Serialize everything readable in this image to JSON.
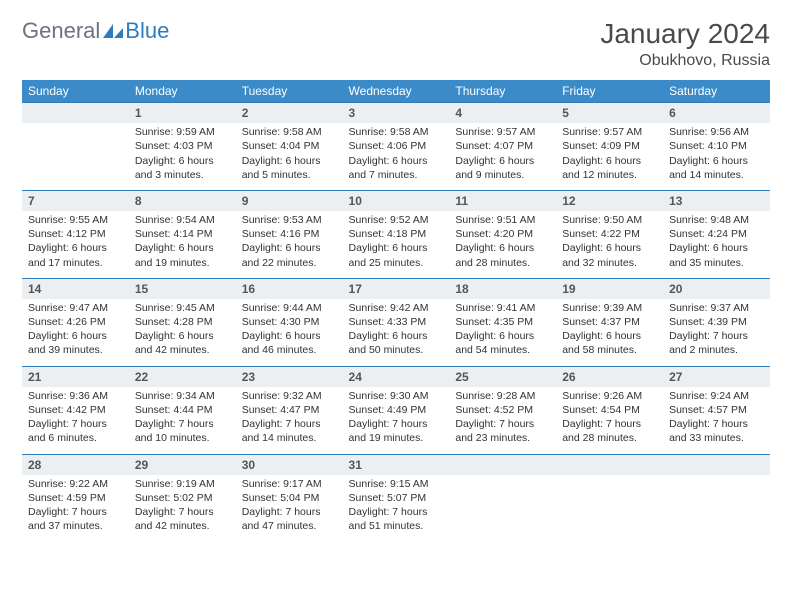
{
  "logo": {
    "text1": "General",
    "text2": "Blue"
  },
  "title": "January 2024",
  "location": "Obukhovo, Russia",
  "colors": {
    "header_bg": "#3b8bc9",
    "header_text": "#ffffff",
    "daynum_bg": "#eceff1",
    "border": "#2f7bbf",
    "text": "#333333",
    "logo_gray": "#6b7280",
    "logo_blue": "#2f7bbf"
  },
  "weekdays": [
    "Sunday",
    "Monday",
    "Tuesday",
    "Wednesday",
    "Thursday",
    "Friday",
    "Saturday"
  ],
  "weeks": [
    {
      "nums": [
        "",
        "1",
        "2",
        "3",
        "4",
        "5",
        "6"
      ],
      "cells": [
        [],
        [
          "Sunrise: 9:59 AM",
          "Sunset: 4:03 PM",
          "Daylight: 6 hours and 3 minutes."
        ],
        [
          "Sunrise: 9:58 AM",
          "Sunset: 4:04 PM",
          "Daylight: 6 hours and 5 minutes."
        ],
        [
          "Sunrise: 9:58 AM",
          "Sunset: 4:06 PM",
          "Daylight: 6 hours and 7 minutes."
        ],
        [
          "Sunrise: 9:57 AM",
          "Sunset: 4:07 PM",
          "Daylight: 6 hours and 9 minutes."
        ],
        [
          "Sunrise: 9:57 AM",
          "Sunset: 4:09 PM",
          "Daylight: 6 hours and 12 minutes."
        ],
        [
          "Sunrise: 9:56 AM",
          "Sunset: 4:10 PM",
          "Daylight: 6 hours and 14 minutes."
        ]
      ]
    },
    {
      "nums": [
        "7",
        "8",
        "9",
        "10",
        "11",
        "12",
        "13"
      ],
      "cells": [
        [
          "Sunrise: 9:55 AM",
          "Sunset: 4:12 PM",
          "Daylight: 6 hours and 17 minutes."
        ],
        [
          "Sunrise: 9:54 AM",
          "Sunset: 4:14 PM",
          "Daylight: 6 hours and 19 minutes."
        ],
        [
          "Sunrise: 9:53 AM",
          "Sunset: 4:16 PM",
          "Daylight: 6 hours and 22 minutes."
        ],
        [
          "Sunrise: 9:52 AM",
          "Sunset: 4:18 PM",
          "Daylight: 6 hours and 25 minutes."
        ],
        [
          "Sunrise: 9:51 AM",
          "Sunset: 4:20 PM",
          "Daylight: 6 hours and 28 minutes."
        ],
        [
          "Sunrise: 9:50 AM",
          "Sunset: 4:22 PM",
          "Daylight: 6 hours and 32 minutes."
        ],
        [
          "Sunrise: 9:48 AM",
          "Sunset: 4:24 PM",
          "Daylight: 6 hours and 35 minutes."
        ]
      ]
    },
    {
      "nums": [
        "14",
        "15",
        "16",
        "17",
        "18",
        "19",
        "20"
      ],
      "cells": [
        [
          "Sunrise: 9:47 AM",
          "Sunset: 4:26 PM",
          "Daylight: 6 hours and 39 minutes."
        ],
        [
          "Sunrise: 9:45 AM",
          "Sunset: 4:28 PM",
          "Daylight: 6 hours and 42 minutes."
        ],
        [
          "Sunrise: 9:44 AM",
          "Sunset: 4:30 PM",
          "Daylight: 6 hours and 46 minutes."
        ],
        [
          "Sunrise: 9:42 AM",
          "Sunset: 4:33 PM",
          "Daylight: 6 hours and 50 minutes."
        ],
        [
          "Sunrise: 9:41 AM",
          "Sunset: 4:35 PM",
          "Daylight: 6 hours and 54 minutes."
        ],
        [
          "Sunrise: 9:39 AM",
          "Sunset: 4:37 PM",
          "Daylight: 6 hours and 58 minutes."
        ],
        [
          "Sunrise: 9:37 AM",
          "Sunset: 4:39 PM",
          "Daylight: 7 hours and 2 minutes."
        ]
      ]
    },
    {
      "nums": [
        "21",
        "22",
        "23",
        "24",
        "25",
        "26",
        "27"
      ],
      "cells": [
        [
          "Sunrise: 9:36 AM",
          "Sunset: 4:42 PM",
          "Daylight: 7 hours and 6 minutes."
        ],
        [
          "Sunrise: 9:34 AM",
          "Sunset: 4:44 PM",
          "Daylight: 7 hours and 10 minutes."
        ],
        [
          "Sunrise: 9:32 AM",
          "Sunset: 4:47 PM",
          "Daylight: 7 hours and 14 minutes."
        ],
        [
          "Sunrise: 9:30 AM",
          "Sunset: 4:49 PM",
          "Daylight: 7 hours and 19 minutes."
        ],
        [
          "Sunrise: 9:28 AM",
          "Sunset: 4:52 PM",
          "Daylight: 7 hours and 23 minutes."
        ],
        [
          "Sunrise: 9:26 AM",
          "Sunset: 4:54 PM",
          "Daylight: 7 hours and 28 minutes."
        ],
        [
          "Sunrise: 9:24 AM",
          "Sunset: 4:57 PM",
          "Daylight: 7 hours and 33 minutes."
        ]
      ]
    },
    {
      "nums": [
        "28",
        "29",
        "30",
        "31",
        "",
        "",
        ""
      ],
      "cells": [
        [
          "Sunrise: 9:22 AM",
          "Sunset: 4:59 PM",
          "Daylight: 7 hours and 37 minutes."
        ],
        [
          "Sunrise: 9:19 AM",
          "Sunset: 5:02 PM",
          "Daylight: 7 hours and 42 minutes."
        ],
        [
          "Sunrise: 9:17 AM",
          "Sunset: 5:04 PM",
          "Daylight: 7 hours and 47 minutes."
        ],
        [
          "Sunrise: 9:15 AM",
          "Sunset: 5:07 PM",
          "Daylight: 7 hours and 51 minutes."
        ],
        [],
        [],
        []
      ]
    }
  ]
}
